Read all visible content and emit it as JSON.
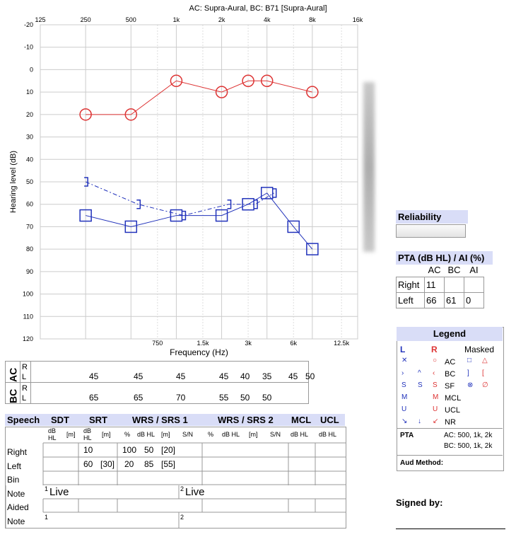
{
  "chart_data": {
    "type": "scatter",
    "title": "AC: Supra-Aural, BC: B71 [Supra-Aural]",
    "xlabel": "Frequency (Hz)",
    "ylabel": "Hearing level (dB)",
    "x_scale": "log",
    "xlim": [
      125,
      16000
    ],
    "ylim": [
      120,
      -20
    ],
    "top_ticks": [
      "125",
      "250",
      "500",
      "1k",
      "2k",
      "4k",
      "8k",
      "16k"
    ],
    "bottom_ticks": [
      "750",
      "1.5k",
      "3k",
      "6k",
      "12.5k"
    ],
    "y_ticks": [
      "-20",
      "-10",
      "0",
      "10",
      "20",
      "30",
      "40",
      "50",
      "60",
      "70",
      "80",
      "90",
      "100",
      "110",
      "120"
    ],
    "series": [
      {
        "name": "Right AC",
        "color": "#dd3333",
        "marker": "circle",
        "line": "solid",
        "x": [
          250,
          500,
          1000,
          2000,
          3000,
          4000,
          8000
        ],
        "y": [
          20,
          20,
          5,
          10,
          5,
          5,
          10
        ]
      },
      {
        "name": "Left AC",
        "color": "#2233bb",
        "marker": "square",
        "line": "solid",
        "x": [
          250,
          500,
          1000,
          2000,
          3000,
          4000,
          6000,
          8000
        ],
        "y": [
          65,
          70,
          65,
          65,
          60,
          55,
          70,
          80
        ]
      },
      {
        "name": "Left BC",
        "color": "#2233bb",
        "marker": "bracket",
        "line": "dashed",
        "x": [
          250,
          500,
          1000,
          2000,
          3000,
          4000
        ],
        "y": [
          50,
          60,
          65,
          60,
          60,
          55
        ]
      }
    ],
    "grid": true
  },
  "freq_table": {
    "rows": [
      {
        "label": "AC",
        "sub": [
          "R",
          "L"
        ],
        "values": [
          "45",
          "45",
          "45",
          "45",
          "40",
          "35",
          "45",
          "50"
        ]
      },
      {
        "label": "BC",
        "sub": [
          "R",
          "L"
        ],
        "values": [
          "65",
          "65",
          "70",
          "55",
          "50",
          "50"
        ]
      }
    ]
  },
  "reliability": {
    "title": "Reliability"
  },
  "pta": {
    "title": "PTA (dB HL) / AI (%)",
    "cols": [
      "AC",
      "BC",
      "AI"
    ],
    "rows": [
      {
        "label": "Right",
        "AC": "11",
        "BC": "",
        "AI": ""
      },
      {
        "label": "Left",
        "AC": "66",
        "BC": "61",
        "AI": "0"
      }
    ]
  },
  "legend": {
    "title": "Legend",
    "L": "L",
    "R": "R",
    "masked": "Masked",
    "rows": [
      "AC",
      "BC",
      "SF",
      "MCL",
      "UCL",
      "NR"
    ],
    "pta_label": "PTA",
    "pta_ac": "AC:  500, 1k, 2k",
    "pta_bc": "BC:  500, 1k, 2k",
    "aud_method": "Aud Method:"
  },
  "speech": {
    "headers": [
      "Speech",
      "SDT",
      "SRT",
      "WRS / SRS 1",
      "WRS / SRS 2",
      "MCL",
      "UCL"
    ],
    "subheaders": [
      "dB HL",
      "[m]",
      "dB HL",
      "[m]",
      "%",
      "dB HL",
      "[m]",
      "S/N",
      "%",
      "dB HL",
      "[m]",
      "S/N",
      "dB HL",
      "dB HL"
    ],
    "rows": [
      "Right",
      "Left",
      "Bin",
      "Note",
      "Aided",
      "Note"
    ],
    "right_srt": "10",
    "right_wrs_pct": "100",
    "right_wrs_db": "50",
    "right_wrs_m": "[20]",
    "left_srt": "60",
    "left_srt_m": "[30]",
    "left_wrs_pct": "20",
    "left_wrs_db": "85",
    "left_wrs_m": "[55]",
    "note1_a": "Live",
    "note1_b": "Live",
    "note_sup1": "1",
    "note_sup2": "2"
  },
  "signed_by": "Signed by:"
}
